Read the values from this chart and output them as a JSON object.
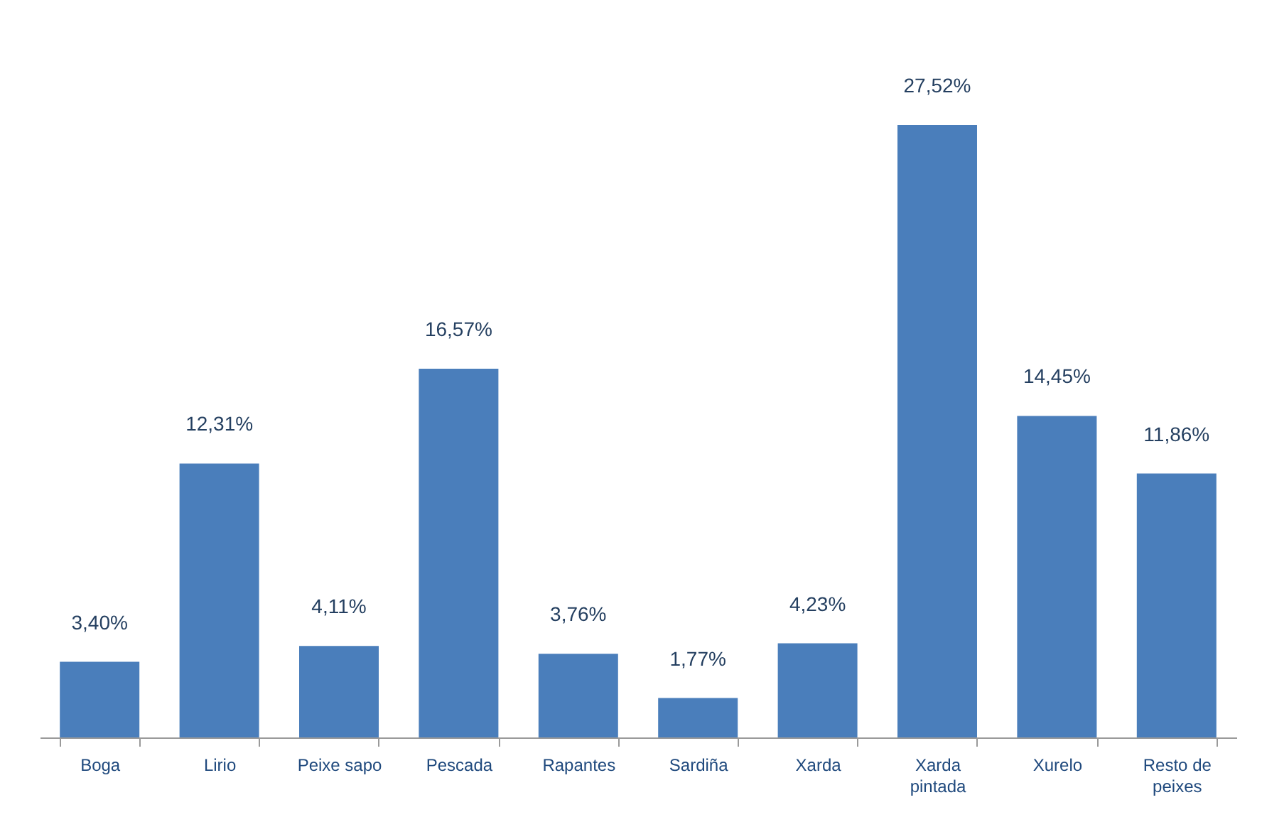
{
  "chart_data": {
    "type": "bar",
    "categories": [
      "Boga",
      "Lirio",
      "Peixe sapo",
      "Pescada",
      "Rapantes",
      "Sardiña",
      "Xarda",
      "Xarda pintada",
      "Xurelo",
      "Resto de peixes"
    ],
    "values": [
      3.4,
      12.31,
      4.11,
      16.57,
      3.76,
      1.77,
      4.23,
      27.52,
      14.45,
      11.86
    ],
    "value_labels": [
      "3,40%",
      "12,31%",
      "4,11%",
      "16,57%",
      "3,76%",
      "1,77%",
      "4,23%",
      "27,52%",
      "14,45%",
      "11,86%"
    ],
    "color": "#4a7ebb"
  }
}
